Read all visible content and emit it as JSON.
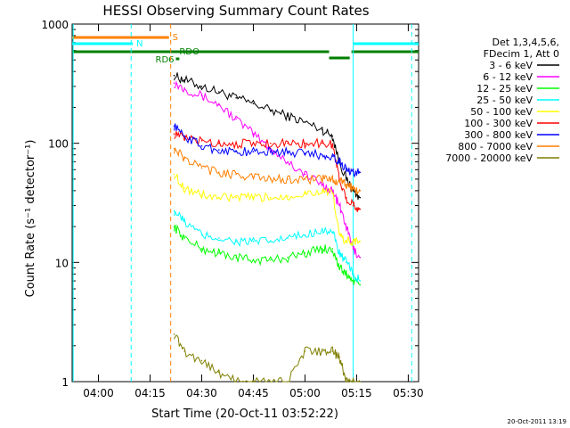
{
  "chart_data": {
    "type": "line",
    "title": "HESSI Observing Summary Count Rates",
    "xlabel": "Start Time (20-Oct-11 03:52:22)",
    "ylabel": "Count Rate (s⁻¹ detector⁻¹)",
    "yscale": "log",
    "ylim": [
      1,
      1000
    ],
    "xlim": [
      "03:52:22",
      "05:33:00"
    ],
    "x_ticks": [
      "04:00",
      "04:15",
      "04:30",
      "04:45",
      "05:00",
      "05:15",
      "05:30"
    ],
    "y_ticks": [
      "1",
      "10",
      "100",
      "1000"
    ],
    "legend_header": [
      "Det 1,3,4,5,6,",
      "FDecim 1, Att 0"
    ],
    "legend_position": "right",
    "timestamp": "20-Oct-2011 13:19",
    "flags": [
      {
        "label": "S",
        "color": "#ff7f00"
      },
      {
        "label": "N",
        "color": "#00ffff"
      },
      {
        "label": "RD6",
        "color": "#007f00"
      },
      {
        "label": "RDO",
        "color": "#007f00"
      }
    ],
    "x": [
      "04:22",
      "04:25",
      "04:30",
      "04:35",
      "04:40",
      "04:45",
      "04:50",
      "04:55",
      "05:00",
      "05:05",
      "05:08",
      "05:10",
      "05:12",
      "05:14",
      "05:16"
    ],
    "series": [
      {
        "name": "3 - 6 keV",
        "color": "#000000",
        "values": [
          370,
          340,
          300,
          270,
          240,
          215,
          190,
          170,
          150,
          130,
          115,
          70,
          50,
          40,
          35
        ]
      },
      {
        "name": "6 - 12 keV",
        "color": "#ff00ff",
        "values": [
          320,
          290,
          250,
          210,
          160,
          120,
          90,
          70,
          55,
          45,
          40,
          30,
          20,
          13,
          11
        ]
      },
      {
        "name": "12 - 25 keV",
        "color": "#00ff00",
        "values": [
          20,
          16,
          13,
          12,
          11,
          10.5,
          10.5,
          11,
          12,
          13,
          13,
          9,
          8,
          7,
          6.5
        ]
      },
      {
        "name": "25 - 50 keV",
        "color": "#00ffff",
        "values": [
          27,
          22,
          17,
          16,
          15,
          15,
          15,
          16,
          17,
          19,
          18,
          12,
          10,
          8,
          7
        ]
      },
      {
        "name": "50 - 100 keV",
        "color": "#ffff00",
        "values": [
          55,
          42,
          37,
          35,
          35,
          35,
          35,
          36,
          38,
          40,
          38,
          17,
          15,
          15,
          15
        ]
      },
      {
        "name": "100 - 300 keV",
        "color": "#ff0000",
        "values": [
          120,
          110,
          105,
          100,
          100,
          100,
          100,
          100,
          100,
          100,
          98,
          50,
          35,
          30,
          28
        ]
      },
      {
        "name": "300 - 800 keV",
        "color": "#0000ff",
        "values": [
          140,
          115,
          95,
          88,
          85,
          85,
          85,
          85,
          82,
          80,
          78,
          70,
          60,
          58,
          57
        ]
      },
      {
        "name": "800 - 7000 keV",
        "color": "#ff7f00",
        "values": [
          90,
          75,
          62,
          57,
          55,
          52,
          50,
          50,
          50,
          50,
          50,
          48,
          45,
          42,
          40
        ]
      },
      {
        "name": "7000 - 20000 keV",
        "color": "#7f7f00",
        "values": [
          2.5,
          1.8,
          1.5,
          1.2,
          1.0,
          1.0,
          1.0,
          1.0,
          1.8,
          1.8,
          1.8,
          1.6,
          1.0,
          1.0,
          1.0
        ]
      }
    ]
  }
}
